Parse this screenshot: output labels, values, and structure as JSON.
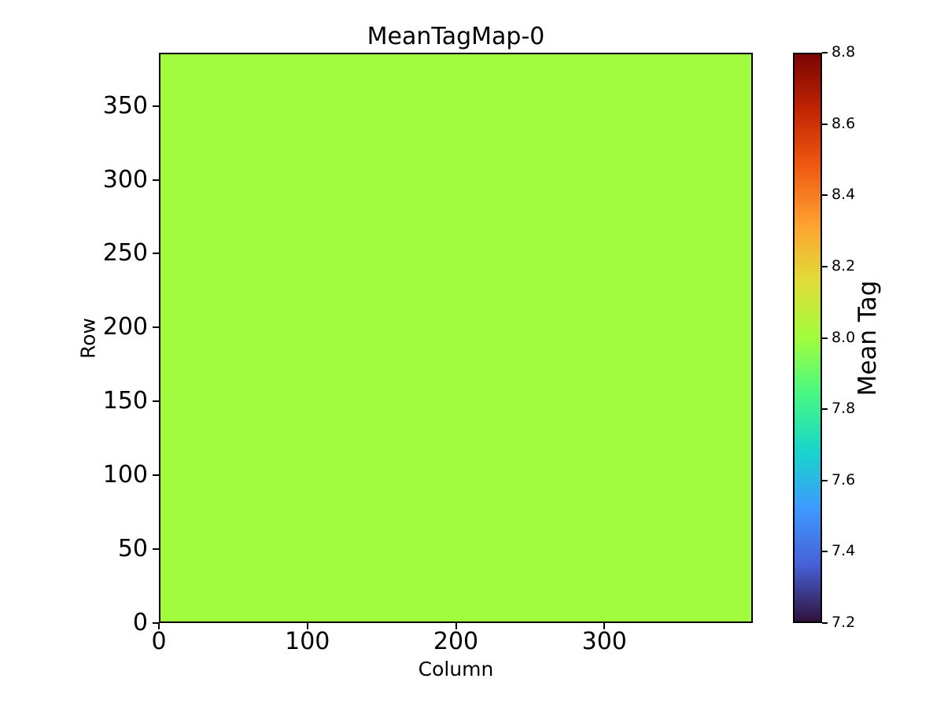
{
  "chart_data": {
    "type": "heatmap",
    "title": "MeanTagMap-0",
    "xlabel": "Column",
    "ylabel": "Row",
    "xlim": [
      0,
      400
    ],
    "ylim": [
      0,
      386
    ],
    "x_ticks": [
      0,
      100,
      200,
      300
    ],
    "y_ticks": [
      0,
      50,
      100,
      150,
      200,
      250,
      300,
      350
    ],
    "grid": false,
    "uniform_value": 8.0,
    "fill_color": "#a1fb3e",
    "colorbar": {
      "label": "Mean Tag",
      "vmin": 7.2,
      "vmax": 8.8,
      "ticks": [
        7.2,
        7.4,
        7.6,
        7.8,
        8.0,
        8.2,
        8.4,
        8.6,
        8.8
      ],
      "tick_decimals": 1,
      "colormap": "turbo",
      "gradient_stops_bottom_to_top": [
        "#30123b",
        "#4761d7",
        "#3e9afe",
        "#18d5cb",
        "#46f884",
        "#a2fd3d",
        "#e1dd37",
        "#fea130",
        "#f05b12",
        "#c32503",
        "#7a0403"
      ]
    }
  }
}
